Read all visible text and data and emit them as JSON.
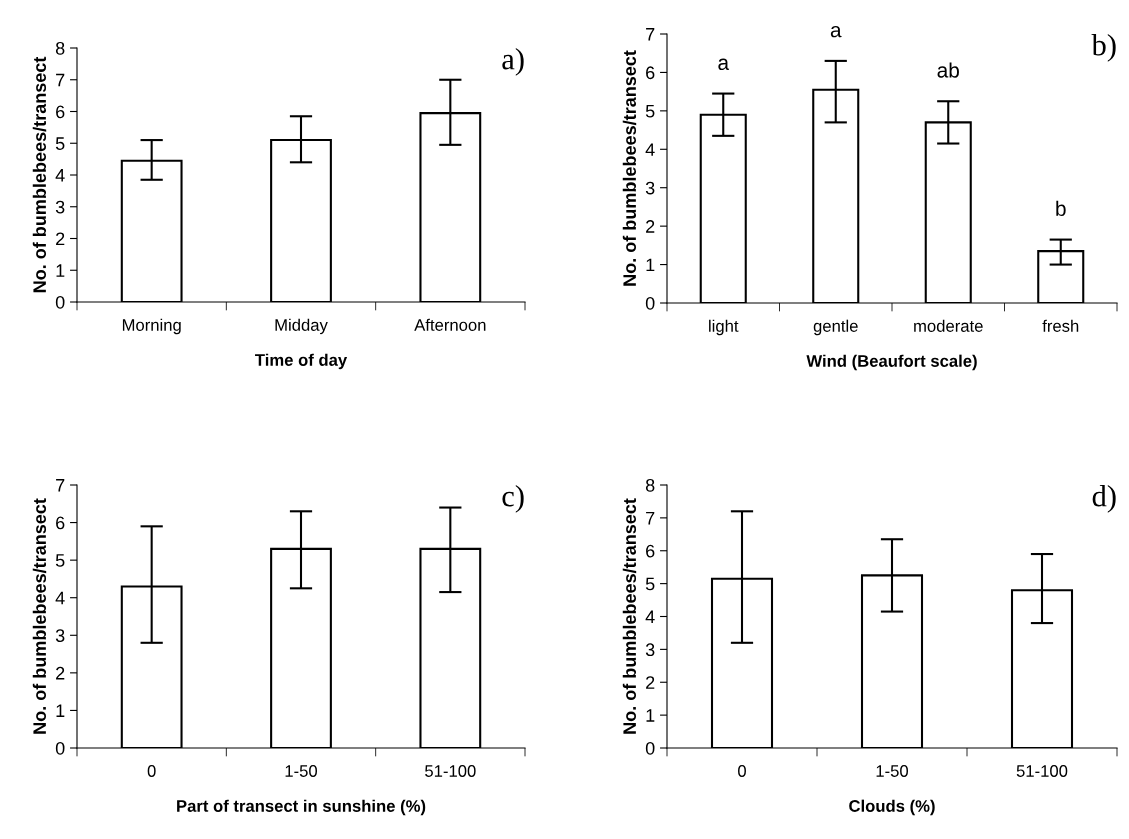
{
  "chart_data": [
    {
      "type": "bar",
      "categories": [
        "Morning",
        "Midday",
        "Afternoon"
      ],
      "values": [
        4.45,
        5.1,
        5.95
      ],
      "errors": [
        [
          3.85,
          5.1
        ],
        [
          4.4,
          5.85
        ],
        [
          4.95,
          7.0
        ]
      ],
      "color": "#ffffff",
      "xlabel": "Time of day",
      "ylabel": "No. of bumblebees/transect",
      "ylim": [
        0,
        8
      ],
      "yticks": [
        0,
        1,
        2,
        3,
        4,
        5,
        6,
        7,
        8
      ],
      "grid": false,
      "legend": false,
      "annotations": [
        "a)"
      ]
    },
    {
      "type": "bar",
      "categories": [
        "light",
        "gentle",
        "moderate",
        "fresh"
      ],
      "values": [
        4.9,
        5.55,
        4.7,
        1.35
      ],
      "errors": [
        [
          4.35,
          5.45
        ],
        [
          4.7,
          6.3
        ],
        [
          4.15,
          5.25
        ],
        [
          1.0,
          1.65
        ]
      ],
      "color": "#ffffff",
      "xlabel": "Wind (Beaufort scale)",
      "ylabel": "No. of bumblebees/transect",
      "ylim": [
        0,
        7
      ],
      "yticks": [
        0,
        1,
        2,
        3,
        4,
        5,
        6,
        7
      ],
      "grid": false,
      "legend": false,
      "annotations": [
        "b)",
        "a",
        "a",
        "ab",
        "b"
      ]
    },
    {
      "type": "bar",
      "categories": [
        "0",
        "1-50",
        "51-100"
      ],
      "values": [
        4.3,
        5.3,
        5.3
      ],
      "errors": [
        [
          2.8,
          5.9
        ],
        [
          4.25,
          6.3
        ],
        [
          4.15,
          6.4
        ]
      ],
      "color": "#ffffff",
      "xlabel": "Part of transect in sunshine (%)",
      "ylabel": "No. of bumblebees/transect",
      "ylim": [
        0,
        7
      ],
      "yticks": [
        0,
        1,
        2,
        3,
        4,
        5,
        6,
        7
      ],
      "grid": false,
      "legend": false,
      "annotations": [
        "c)"
      ]
    },
    {
      "type": "bar",
      "categories": [
        "0",
        "1-50",
        "51-100"
      ],
      "values": [
        5.15,
        5.25,
        4.8
      ],
      "errors": [
        [
          3.2,
          7.2
        ],
        [
          4.15,
          6.35
        ],
        [
          3.8,
          5.9
        ]
      ],
      "color": "#ffffff",
      "xlabel": "Clouds (%)",
      "ylabel": "No. of bumblebees/transect",
      "ylim": [
        0,
        8
      ],
      "yticks": [
        0,
        1,
        2,
        3,
        4,
        5,
        6,
        7,
        8
      ],
      "grid": false,
      "legend": false,
      "annotations": [
        "d)"
      ]
    }
  ]
}
